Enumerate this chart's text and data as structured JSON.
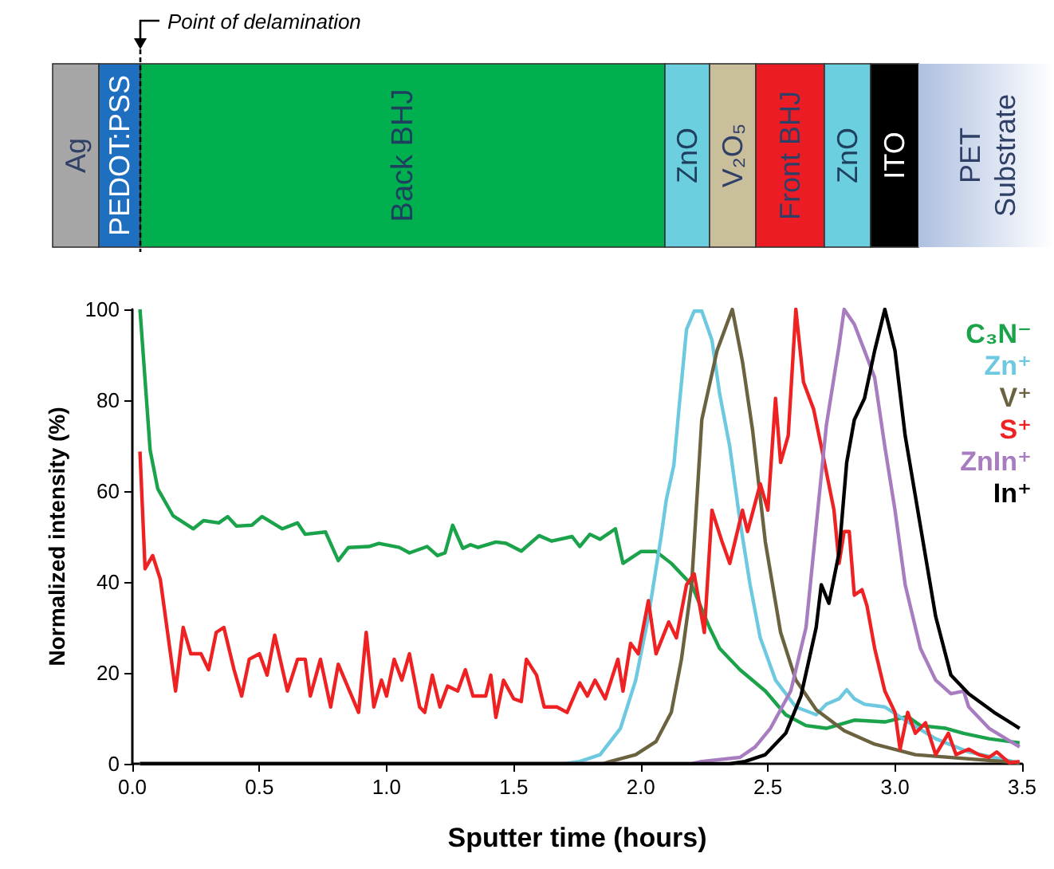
{
  "chart_data": {
    "type": "line",
    "xlabel": "Sputter time (hours)",
    "ylabel": "Normalized intensity (%)",
    "xlim": [
      0,
      3.5
    ],
    "xticks": [
      {
        "value": 0,
        "label": "0.0"
      },
      {
        "value": 0.5,
        "label": "0.5"
      },
      {
        "value": 1,
        "label": "1.0"
      },
      {
        "value": 1.5,
        "label": "1.5"
      },
      {
        "value": 2,
        "label": "2.0"
      },
      {
        "value": 2.5,
        "label": "2.5"
      },
      {
        "value": 3,
        "label": "3.0"
      },
      {
        "value": 3.5,
        "label": "3.5"
      }
    ],
    "ylim": [
      0,
      100
    ],
    "yticks": [
      0,
      20,
      40,
      60,
      80,
      100
    ],
    "legend": "top right",
    "annotations": [
      "Point of delamination",
      "Ag",
      "PEDOT:PSS",
      "Back BHJ",
      "ZnO",
      "V₂O₅",
      "Front BHJ",
      "ZnO",
      "ITO",
      "PET Substrate"
    ],
    "series": [
      {
        "name": "C₃N⁻",
        "color": "#1aa34a",
        "x": [
          0.03,
          0.07,
          0.1,
          0.16,
          0.24,
          0.28,
          0.34,
          0.375,
          0.41,
          0.47,
          0.51,
          0.59,
          0.65,
          0.68,
          0.76,
          0.81,
          0.85,
          0.93,
          0.97,
          1.05,
          1.09,
          1.16,
          1.2,
          1.23,
          1.26,
          1.3,
          1.33,
          1.36,
          1.43,
          1.47,
          1.53,
          1.6,
          1.65,
          1.73,
          1.76,
          1.8,
          1.84,
          1.9,
          1.93,
          2.0,
          2.06,
          2.12,
          2.2,
          2.27,
          2.31,
          2.39,
          2.49,
          2.57,
          2.65,
          2.73,
          2.84,
          2.96,
          3.05,
          3.1,
          3.2,
          3.27,
          3.37,
          3.49
        ],
        "values": [
          100,
          69,
          60.5,
          54.6,
          51.7,
          53.5,
          53,
          54.4,
          52.3,
          52.5,
          54.4,
          51.7,
          53,
          50.5,
          51,
          44.7,
          47.6,
          47.8,
          48.5,
          47.6,
          46.4,
          47.8,
          45.8,
          46.4,
          52.5,
          47.4,
          48.2,
          47.6,
          48.8,
          48.5,
          46.8,
          50.2,
          49,
          50,
          47.8,
          50.5,
          49.4,
          51.7,
          44.1,
          46.7,
          46.7,
          44.1,
          39.4,
          30,
          25.4,
          20.7,
          16,
          10.8,
          8.4,
          7.8,
          9.6,
          9.2,
          10.4,
          8.4,
          7.8,
          6.7,
          5.5,
          4.6
        ]
      },
      {
        "name": "Zn⁺",
        "color": "#6cc9e0",
        "x": [
          0.03,
          1.7,
          1.76,
          1.84,
          1.92,
          1.98,
          2.03,
          2.08,
          2.1,
          2.13,
          2.15,
          2.18,
          2.21,
          2.24,
          2.28,
          2.31,
          2.35,
          2.39,
          2.43,
          2.47,
          2.53,
          2.61,
          2.69,
          2.73,
          2.78,
          2.81,
          2.84,
          2.88,
          2.96,
          3.04,
          3.16,
          3.29,
          3.49
        ],
        "values": [
          0,
          0,
          0.5,
          2,
          7.8,
          18.4,
          32.4,
          50,
          58,
          65.7,
          78,
          95.6,
          99.6,
          99.6,
          93.2,
          81.5,
          69.8,
          53.5,
          39.4,
          27.7,
          18.4,
          12.5,
          10.8,
          13.1,
          14.3,
          16.3,
          14.3,
          13.1,
          12.5,
          9.6,
          5.5,
          2.6,
          0.2
        ]
      },
      {
        "name": "V⁺",
        "color": "#6b6340",
        "x": [
          0.03,
          1.85,
          1.88,
          1.98,
          2.06,
          2.12,
          2.16,
          2.2,
          2.24,
          2.3,
          2.36,
          2.4,
          2.44,
          2.49,
          2.55,
          2.61,
          2.69,
          2.8,
          2.92,
          3.08,
          3.49
        ],
        "values": [
          0,
          0,
          0.5,
          2,
          4.9,
          11.3,
          23,
          39.4,
          75.7,
          90.9,
          100,
          88.5,
          73.3,
          48.8,
          28.9,
          18.4,
          11.9,
          7.3,
          4.3,
          2,
          0.2
        ]
      },
      {
        "name": "S⁺",
        "color": "#ee2222",
        "x": [
          0.03,
          0.05,
          0.08,
          0.11,
          0.17,
          0.2,
          0.23,
          0.27,
          0.3,
          0.33,
          0.36,
          0.4,
          0.43,
          0.46,
          0.5,
          0.53,
          0.56,
          0.61,
          0.65,
          0.68,
          0.7,
          0.74,
          0.78,
          0.81,
          0.89,
          0.92,
          0.95,
          0.98,
          1.0,
          1.03,
          1.06,
          1.09,
          1.13,
          1.15,
          1.18,
          1.21,
          1.24,
          1.28,
          1.31,
          1.34,
          1.39,
          1.41,
          1.43,
          1.46,
          1.5,
          1.53,
          1.55,
          1.59,
          1.62,
          1.67,
          1.71,
          1.76,
          1.79,
          1.82,
          1.86,
          1.91,
          1.93,
          1.96,
          1.99,
          2.03,
          2.06,
          2.11,
          2.14,
          2.18,
          2.21,
          2.25,
          2.28,
          2.32,
          2.35,
          2.4,
          2.42,
          2.47,
          2.5,
          2.53,
          2.55,
          2.58,
          2.61,
          2.64,
          2.68,
          2.71,
          2.76,
          2.78,
          2.8,
          2.82,
          2.84,
          2.87,
          2.89,
          2.92,
          2.96,
          3.0,
          3.02,
          3.05,
          3.08,
          3.12,
          3.16,
          3.21,
          3.24,
          3.29,
          3.33,
          3.37,
          3.4,
          3.45,
          3.49
        ],
        "values": [
          68.7,
          42.9,
          45.8,
          40.6,
          16,
          30,
          24.2,
          24.2,
          20.7,
          28.9,
          30,
          20.7,
          14.9,
          23,
          24.2,
          19.5,
          28.3,
          16,
          23,
          23,
          14.9,
          23,
          12.5,
          21.9,
          11.3,
          28.9,
          12.5,
          18.4,
          14.9,
          23,
          18.4,
          24.2,
          12.5,
          11.3,
          19.5,
          12.5,
          17.1,
          16,
          20.7,
          14.9,
          14.9,
          19.5,
          10.2,
          18.4,
          14.3,
          13.7,
          23,
          19.5,
          12.5,
          12.5,
          11.3,
          17.8,
          14.9,
          18.4,
          14.3,
          23,
          16,
          26.5,
          24.2,
          35.9,
          24.2,
          31.2,
          27.7,
          39.4,
          41.8,
          28.9,
          55.8,
          48.8,
          44.1,
          55.8,
          51.1,
          61.6,
          55.8,
          80.4,
          66.3,
          72.2,
          100,
          84,
          78,
          69.8,
          55.8,
          44.1,
          51.1,
          51.1,
          37.1,
          38.3,
          34.7,
          25.4,
          16,
          11.3,
          3.2,
          11.3,
          6.7,
          9,
          2,
          6.7,
          2,
          3.2,
          2,
          1.4,
          2.6,
          0.2,
          0.5
        ]
      },
      {
        "name": "ZnIn⁺",
        "color": "#a87dc0",
        "x": [
          0.03,
          2.2,
          2.24,
          2.39,
          2.45,
          2.51,
          2.59,
          2.65,
          2.69,
          2.73,
          2.78,
          2.8,
          2.84,
          2.88,
          2.92,
          2.96,
          3.0,
          3.04,
          3.1,
          3.16,
          3.22,
          3.27,
          3.29,
          3.37,
          3.49
        ],
        "values": [
          0,
          0,
          0.5,
          1.4,
          3.7,
          7.8,
          16,
          30,
          52.3,
          74.5,
          92,
          100,
          96.7,
          90.9,
          85,
          69.8,
          55.8,
          39.4,
          25.4,
          18.4,
          15.4,
          16,
          12.5,
          7.8,
          3.7
        ]
      },
      {
        "name": "In⁺",
        "color": "#000000",
        "x": [
          0.03,
          2.35,
          2.41,
          2.49,
          2.57,
          2.63,
          2.69,
          2.71,
          2.74,
          2.78,
          2.81,
          2.84,
          2.88,
          2.92,
          2.96,
          3.0,
          3.04,
          3.1,
          3.16,
          3.22,
          3.29,
          3.39,
          3.49
        ],
        "values": [
          0,
          0,
          0.5,
          2,
          6.7,
          14.9,
          30,
          39.4,
          35.3,
          46.4,
          66.3,
          75.7,
          80.4,
          90.9,
          100,
          90.9,
          72.2,
          52.3,
          32.4,
          19.5,
          15.4,
          11.3,
          7.8
        ]
      }
    ]
  }
}
